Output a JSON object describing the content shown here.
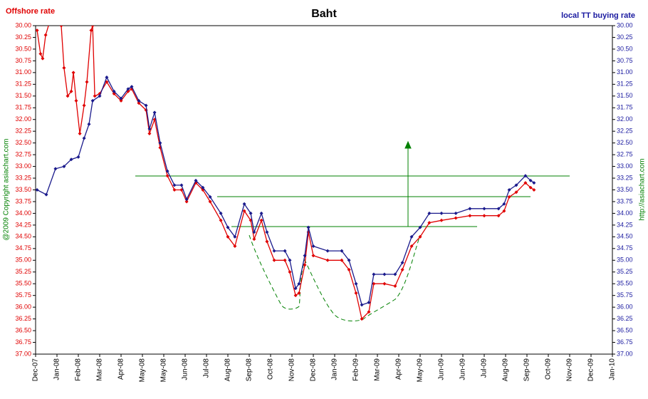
{
  "chart_data": {
    "type": "line",
    "title": "Baht",
    "y_label": "Offshore rate",
    "y2_label": "local TT buying rate",
    "annotations": [
      "@2009 Copyright asiachart.com",
      "http://asiachart.com"
    ],
    "y_inverted": true,
    "xlim": [
      0,
      27
    ],
    "xticks": [
      {
        "value": 0,
        "label": "Dec-07"
      },
      {
        "value": 1,
        "label": "Jan-08"
      },
      {
        "value": 2,
        "label": "Feb-08"
      },
      {
        "value": 3,
        "label": "Mar-08"
      },
      {
        "value": 4,
        "label": "Apr-08"
      },
      {
        "value": 5,
        "label": "May-08"
      },
      {
        "value": 6,
        "label": "May-08"
      },
      {
        "value": 7,
        "label": "Jun-08"
      },
      {
        "value": 8,
        "label": "Jul-08"
      },
      {
        "value": 9,
        "label": "Aug-08"
      },
      {
        "value": 10,
        "label": "Sep-08"
      },
      {
        "value": 11,
        "label": "Oct-08"
      },
      {
        "value": 12,
        "label": "Nov-08"
      },
      {
        "value": 13,
        "label": "Dec-08"
      },
      {
        "value": 14,
        "label": "Jan-09"
      },
      {
        "value": 15,
        "label": "Feb-09"
      },
      {
        "value": 16,
        "label": "Mar-09"
      },
      {
        "value": 17,
        "label": "Apr-09"
      },
      {
        "value": 18,
        "label": "May-09"
      },
      {
        "value": 19,
        "label": "Jun-09"
      },
      {
        "value": 20,
        "label": "Jun-09"
      },
      {
        "value": 21,
        "label": "Jul-09"
      },
      {
        "value": 22,
        "label": "Aug-09"
      },
      {
        "value": 23,
        "label": "Sep-09"
      },
      {
        "value": 24,
        "label": "Oct-09"
      },
      {
        "value": 25,
        "label": "Nov-09"
      },
      {
        "value": 26,
        "label": "Dec-09"
      },
      {
        "value": 27,
        "label": "Jan-10"
      }
    ],
    "ylim": [
      30,
      37
    ],
    "yticks": [
      {
        "value": 30,
        "label": "30.00"
      },
      {
        "value": 30.25,
        "label": "30.25"
      },
      {
        "value": 30.5,
        "label": "30.50"
      },
      {
        "value": 30.75,
        "label": "30.75"
      },
      {
        "value": 31,
        "label": "31.00"
      },
      {
        "value": 31.25,
        "label": "31.25"
      },
      {
        "value": 31.5,
        "label": "31.50"
      },
      {
        "value": 31.75,
        "label": "31.75"
      },
      {
        "value": 32,
        "label": "32.00"
      },
      {
        "value": 32.25,
        "label": "32.25"
      },
      {
        "value": 32.5,
        "label": "32.50"
      },
      {
        "value": 32.75,
        "label": "32.75"
      },
      {
        "value": 33,
        "label": "33.00"
      },
      {
        "value": 33.25,
        "label": "33.25"
      },
      {
        "value": 33.5,
        "label": "33.50"
      },
      {
        "value": 33.75,
        "label": "33.75"
      },
      {
        "value": 34,
        "label": "34.00"
      },
      {
        "value": 34.25,
        "label": "34.25"
      },
      {
        "value": 34.5,
        "label": "34.50"
      },
      {
        "value": 34.75,
        "label": "34.75"
      },
      {
        "value": 35,
        "label": "35.00"
      },
      {
        "value": 35.25,
        "label": "35.25"
      },
      {
        "value": 35.5,
        "label": "35.50"
      },
      {
        "value": 35.75,
        "label": "35.75"
      },
      {
        "value": 36,
        "label": "36.00"
      },
      {
        "value": 36.25,
        "label": "36.25"
      },
      {
        "value": 36.5,
        "label": "36.50"
      },
      {
        "value": 36.75,
        "label": "36.75"
      },
      {
        "value": 37,
        "label": "37.00"
      }
    ],
    "y2lim": [
      30,
      37
    ],
    "y2ticks": [
      {
        "value": 30,
        "label": "30.00"
      },
      {
        "value": 30.25,
        "label": "30.25"
      },
      {
        "value": 30.5,
        "label": "30.50"
      },
      {
        "value": 30.75,
        "label": "30.75"
      },
      {
        "value": 31,
        "label": "31.00"
      },
      {
        "value": 31.25,
        "label": "31.25"
      },
      {
        "value": 31.5,
        "label": "31.50"
      },
      {
        "value": 31.75,
        "label": "31.75"
      },
      {
        "value": 32,
        "label": "32.00"
      },
      {
        "value": 32.25,
        "label": "32.25"
      },
      {
        "value": 32.5,
        "label": "32.50"
      },
      {
        "value": 32.75,
        "label": "32.75"
      },
      {
        "value": 33,
        "label": "33.00"
      },
      {
        "value": 33.25,
        "label": "33.25"
      },
      {
        "value": 33.5,
        "label": "33.50"
      },
      {
        "value": 33.75,
        "label": "33.75"
      },
      {
        "value": 34,
        "label": "34.00"
      },
      {
        "value": 34.25,
        "label": "34.25"
      },
      {
        "value": 34.5,
        "label": "34.50"
      },
      {
        "value": 34.75,
        "label": "34.75"
      },
      {
        "value": 35,
        "label": "35.00"
      },
      {
        "value": 35.25,
        "label": "35.25"
      },
      {
        "value": 35.5,
        "label": "35.50"
      },
      {
        "value": 35.75,
        "label": "35.75"
      },
      {
        "value": 36,
        "label": "36.00"
      },
      {
        "value": 36.25,
        "label": "36.25"
      },
      {
        "value": 36.5,
        "label": "36.50"
      },
      {
        "value": 36.75,
        "label": "36.75"
      },
      {
        "value": 37,
        "label": "37.00"
      }
    ],
    "series": [
      {
        "name": "Offshore rate",
        "color": "#e00000",
        "x": [
          0.07,
          0.23,
          0.33,
          0.47,
          0.67,
          1.0,
          1.2,
          1.33,
          1.5,
          1.67,
          1.77,
          1.9,
          2.07,
          2.27,
          2.4,
          2.6,
          2.67,
          2.77,
          3.0,
          3.33,
          3.67,
          4.0,
          4.33,
          4.5,
          4.83,
          5.17,
          5.33,
          5.57,
          5.83,
          6.17,
          6.5,
          6.83,
          7.07,
          7.5,
          7.83,
          8.17,
          8.67,
          9.0,
          9.33,
          9.77,
          10.07,
          10.23,
          10.57,
          10.83,
          11.17,
          11.67,
          11.9,
          12.17,
          12.33,
          12.6,
          12.77,
          13.0,
          13.67,
          14.33,
          14.67,
          15.0,
          15.27,
          15.6,
          15.83,
          16.33,
          16.83,
          17.17,
          17.6,
          18.0,
          18.43,
          19.0,
          19.67,
          20.33,
          21.0,
          21.67,
          21.93,
          22.17,
          22.5,
          22.93,
          23.17,
          23.33
        ],
        "values": [
          30.1,
          30.6,
          30.7,
          30.2,
          29.9,
          null,
          30.0,
          30.9,
          31.5,
          31.4,
          31.0,
          31.6,
          32.3,
          31.7,
          31.2,
          30.1,
          30.0,
          31.5,
          31.45,
          31.2,
          31.45,
          31.6,
          31.4,
          31.35,
          31.65,
          31.8,
          32.3,
          32.0,
          32.6,
          33.2,
          33.5,
          33.5,
          33.75,
          33.35,
          33.5,
          33.75,
          34.15,
          34.5,
          34.7,
          33.95,
          34.15,
          34.55,
          34.15,
          34.6,
          35.0,
          35.0,
          35.25,
          35.75,
          35.7,
          35.1,
          34.4,
          34.9,
          35.0,
          35.0,
          35.2,
          35.7,
          36.25,
          36.1,
          35.5,
          35.5,
          35.55,
          35.2,
          34.7,
          34.5,
          34.2,
          34.15,
          34.1,
          34.05,
          34.05,
          34.05,
          33.95,
          33.65,
          33.55,
          33.35,
          33.45,
          33.5
        ]
      },
      {
        "name": "local TT buying rate",
        "color": "#1a1a8c",
        "axis": "y2",
        "x": [
          0.07,
          0.5,
          0.93,
          1.33,
          1.67,
          2.0,
          2.27,
          2.5,
          2.67,
          3.0,
          3.33,
          3.67,
          4.0,
          4.33,
          4.5,
          4.83,
          5.17,
          5.33,
          5.57,
          5.83,
          6.17,
          6.5,
          6.83,
          7.07,
          7.5,
          7.83,
          8.17,
          8.67,
          9.0,
          9.33,
          9.77,
          10.07,
          10.23,
          10.57,
          10.83,
          11.17,
          11.67,
          11.9,
          12.17,
          12.33,
          12.6,
          12.77,
          13.0,
          13.67,
          14.33,
          14.67,
          15.0,
          15.27,
          15.6,
          15.83,
          16.33,
          16.83,
          17.17,
          17.6,
          18.0,
          18.43,
          19.0,
          19.67,
          20.33,
          21.0,
          21.67,
          21.93,
          22.17,
          22.5,
          22.93,
          23.17,
          23.33
        ],
        "values": [
          33.5,
          33.6,
          33.05,
          33.0,
          32.85,
          32.8,
          32.4,
          32.1,
          31.6,
          31.5,
          31.1,
          31.4,
          31.55,
          31.35,
          31.3,
          31.6,
          31.7,
          32.2,
          31.85,
          32.5,
          33.1,
          33.4,
          33.4,
          33.7,
          33.3,
          33.45,
          33.65,
          34.0,
          34.3,
          34.5,
          33.8,
          34.0,
          34.4,
          34.0,
          34.4,
          34.8,
          34.8,
          35.0,
          35.6,
          35.5,
          34.9,
          34.3,
          34.7,
          34.8,
          34.8,
          35.0,
          35.5,
          35.95,
          35.9,
          35.3,
          35.3,
          35.3,
          35.05,
          34.5,
          34.3,
          34.0,
          34.0,
          34.0,
          33.9,
          33.9,
          33.9,
          33.8,
          33.5,
          33.4,
          33.2,
          33.3,
          33.35
        ]
      }
    ]
  }
}
